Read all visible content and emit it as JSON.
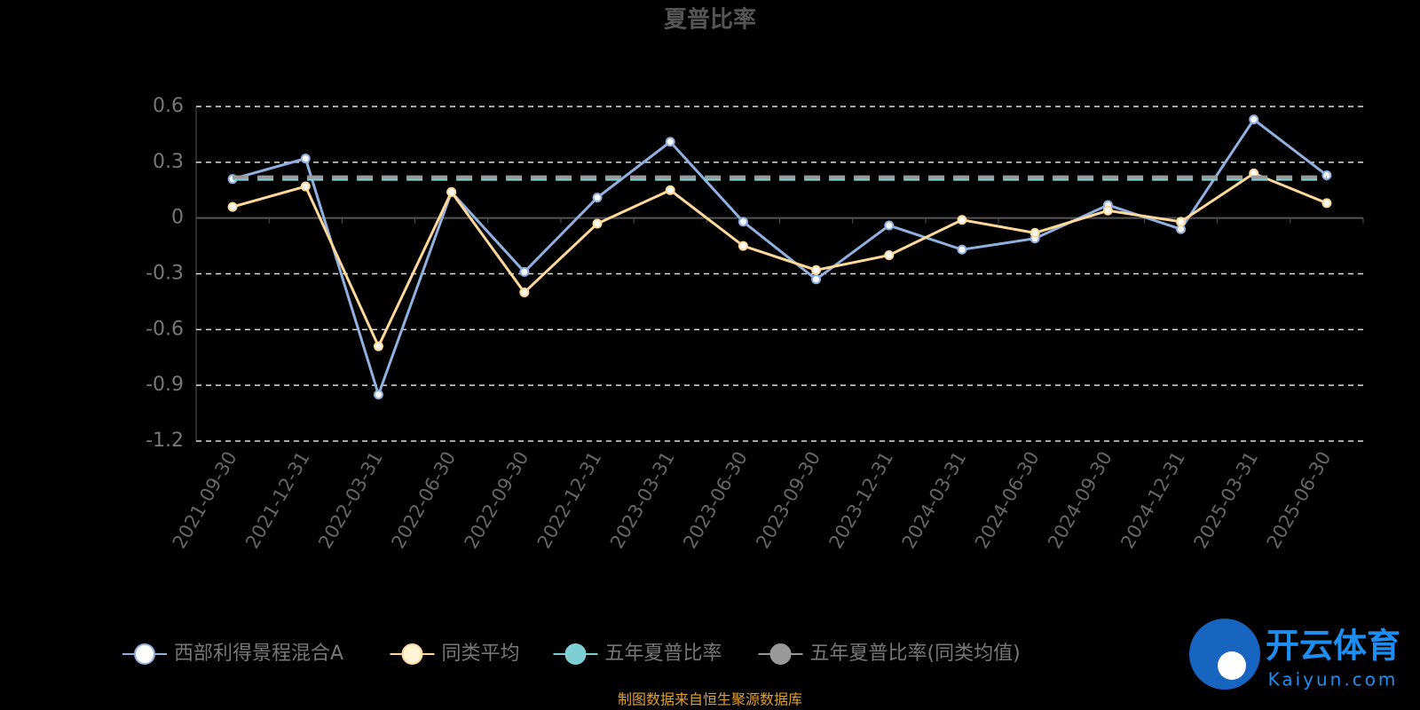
{
  "chart_data": {
    "type": "line",
    "title": "夏普比率",
    "categories": [
      "2021-09-30",
      "2021-12-31",
      "2022-03-31",
      "2022-06-30",
      "2022-09-30",
      "2022-12-31",
      "2023-03-31",
      "2023-06-30",
      "2023-09-30",
      "2023-12-31",
      "2024-03-31",
      "2024-06-30",
      "2024-09-30",
      "2024-12-31",
      "2025-03-31",
      "2025-06-30"
    ],
    "series": [
      {
        "name": "西部利得景程混合A",
        "color": "#8fb0e0",
        "values": [
          0.21,
          0.32,
          -0.95,
          0.14,
          -0.29,
          0.11,
          0.41,
          -0.02,
          -0.33,
          -0.04,
          -0.17,
          -0.11,
          0.07,
          -0.06,
          0.53,
          0.23
        ]
      },
      {
        "name": "同类平均",
        "color": "#ffd89a",
        "values": [
          0.06,
          0.17,
          -0.69,
          0.14,
          -0.4,
          -0.03,
          0.15,
          -0.15,
          -0.28,
          -0.2,
          -0.01,
          -0.08,
          0.04,
          -0.02,
          0.24,
          0.08
        ]
      },
      {
        "name": "五年夏普比率",
        "color": "#7ecfd4",
        "value": 0.21
      },
      {
        "name": "五年夏普比率(同类均值)",
        "color": "#999999",
        "value": 0.22
      }
    ],
    "ylim": [
      -1.2,
      0.6
    ],
    "yticks": [
      -1.2,
      -0.9,
      -0.6,
      -0.3,
      0,
      0.3,
      0.6
    ],
    "grid": true,
    "source": "制图数据来自恒生聚源数据库",
    "watermark": {
      "brand": "开云体育",
      "site": "Kaiyun.com"
    }
  }
}
